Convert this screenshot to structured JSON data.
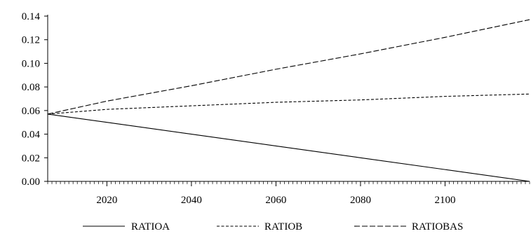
{
  "chart_data": {
    "type": "line",
    "title": "",
    "xlabel": "",
    "ylabel": "",
    "xlim": [
      2006,
      2120
    ],
    "ylim": [
      0,
      0.14
    ],
    "x_ticks": [
      "2020",
      "2040",
      "2060",
      "2080",
      "2100"
    ],
    "y_ticks": [
      "0.00",
      "0.02",
      "0.04",
      "0.06",
      "0.08",
      "0.10",
      "0.12",
      "0.14"
    ],
    "grid": false,
    "legend_position": "bottom",
    "series": [
      {
        "name": "RATIOA",
        "line_style": "solid",
        "color": "#000000",
        "x": [
          2006,
          2020,
          2040,
          2060,
          2080,
          2100,
          2120
        ],
        "y": [
          0.057,
          0.05,
          0.04,
          0.03,
          0.02,
          0.01,
          0.0
        ]
      },
      {
        "name": "RATIOB",
        "line_style": "short-dash",
        "color": "#000000",
        "x": [
          2006,
          2020,
          2040,
          2060,
          2080,
          2100,
          2120
        ],
        "y": [
          0.057,
          0.061,
          0.064,
          0.067,
          0.069,
          0.072,
          0.074
        ]
      },
      {
        "name": "RATIOBAS",
        "line_style": "long-dash",
        "color": "#000000",
        "x": [
          2006,
          2020,
          2040,
          2060,
          2080,
          2100,
          2120
        ],
        "y": [
          0.057,
          0.068,
          0.081,
          0.095,
          0.108,
          0.122,
          0.137
        ]
      }
    ]
  }
}
